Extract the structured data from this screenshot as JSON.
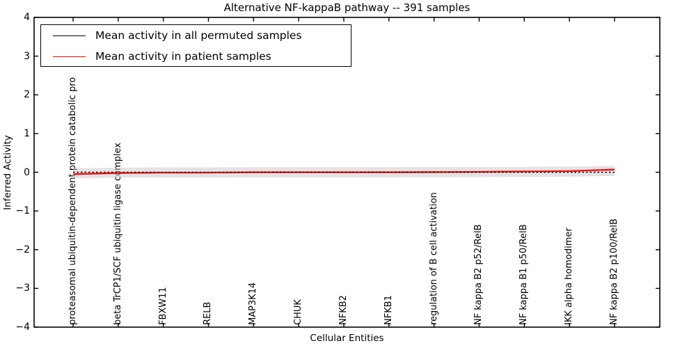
{
  "figure": {
    "title": "Alternative NF-kappaB pathway -- 391 samples"
  },
  "chart_data": {
    "type": "line",
    "title": "Alternative NF-kappaB pathway -- 391 samples",
    "xlabel": "Cellular Entities",
    "ylabel": "Inferred Activity",
    "ylim": [
      -4,
      4
    ],
    "yticks": [
      -4,
      -3,
      -2,
      -1,
      0,
      1,
      2,
      3,
      4
    ],
    "grid": false,
    "legend_position": "upper-left",
    "categories": [
      "proteasomal ubiquitin-dependent protein catabolic pro",
      "beta TrCP1/SCF ubiquitin ligase complex",
      "FBXW11",
      "RELB",
      "MAP3K14",
      "CHUK",
      "NFKB2",
      "NFKB1",
      "regulation of B cell activation",
      "NF kappa B2 p52/RelB",
      "NF kappa B1 p50/RelB",
      "IKK alpha homodimer",
      "NF kappa B2 p100/RelB"
    ],
    "series": [
      {
        "name": "Mean activity in all permuted samples",
        "color": "#000000",
        "style": "dashed",
        "values": [
          0.0,
          0.0,
          0.0,
          0.0,
          0.0,
          0.0,
          0.0,
          0.0,
          0.0,
          0.0,
          0.0,
          0.0,
          0.0
        ]
      },
      {
        "name": "Mean activity in patient samples",
        "color": "#ff0000",
        "style": "solid",
        "values": [
          -0.05,
          -0.02,
          -0.01,
          -0.01,
          0.0,
          0.0,
          0.0,
          0.0,
          0.005,
          0.01,
          0.02,
          0.03,
          0.07
        ]
      }
    ],
    "band": {
      "description": "std band of permuted samples around mean",
      "half_width": 0.13,
      "color": "#c8c8c8",
      "opacity": 0.5
    }
  }
}
